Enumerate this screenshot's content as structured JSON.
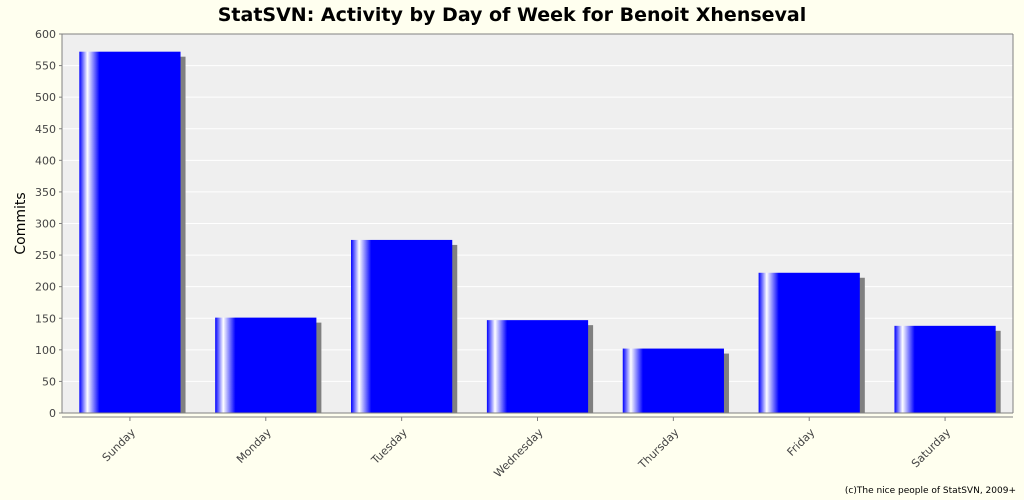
{
  "footer": "(c)The nice people of StatSVN, 2009+",
  "colors": {
    "background": "#ffffef",
    "plot_background": "#efefef",
    "bar": "#0000ff",
    "bar_highlight": "#ffffff",
    "shadow": "#808080",
    "gridline": "#ffffff",
    "axis": "#808080"
  },
  "chart_data": {
    "type": "bar",
    "title": "StatSVN: Activity by Day of Week for Benoit Xhenseval",
    "xlabel": "",
    "ylabel": "Commits",
    "categories": [
      "Sunday",
      "Monday",
      "Tuesday",
      "Wednesday",
      "Thursday",
      "Friday",
      "Saturday"
    ],
    "values": [
      572,
      151,
      274,
      147,
      102,
      222,
      138
    ],
    "ylim": [
      0,
      600
    ],
    "yticks": [
      0,
      50,
      100,
      150,
      200,
      250,
      300,
      350,
      400,
      450,
      500,
      550,
      600
    ],
    "grid": true,
    "legend": false
  }
}
